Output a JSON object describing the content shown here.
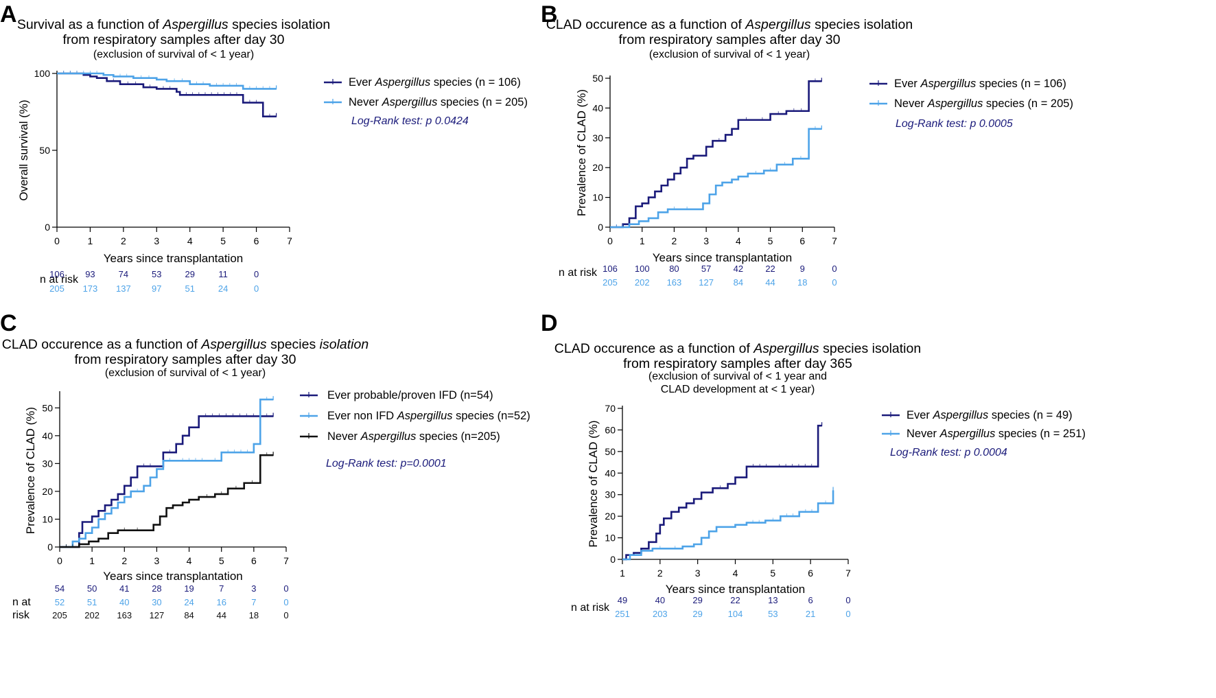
{
  "colors": {
    "dark_blue": "#1a1a7a",
    "light_blue": "#4da3e8",
    "black": "#111111"
  },
  "chart_data": [
    {
      "panel": "A",
      "type": "line",
      "step": true,
      "title_runs": [
        [
          {
            "text": "Survival as a function of "
          },
          {
            "text": "Aspergillus",
            "italic": true
          },
          {
            "text": " species isolation"
          }
        ],
        [
          {
            "text": "from respiratory samples after day 30"
          }
        ]
      ],
      "subtitle_lines": [
        "(exclusion of survival of < 1 year)"
      ],
      "xlabel": "Years since transplantation",
      "ylabel": "Overall survival (%)",
      "xlim": [
        0,
        7
      ],
      "ylim": [
        0,
        100
      ],
      "xticks": [
        0,
        1,
        2,
        3,
        4,
        5,
        6,
        7
      ],
      "yticks": [
        0,
        50,
        100
      ],
      "series": [
        {
          "label_runs": [
            {
              "text": "Ever "
            },
            {
              "text": "Aspergillus",
              "italic": true
            },
            {
              "text": " species  (n = 106)"
            }
          ],
          "color": "#1a1a7a",
          "x": [
            0,
            0.8,
            1.0,
            1.2,
            1.5,
            1.9,
            2.6,
            3.0,
            3.6,
            3.7,
            5.6,
            6.2,
            6.6
          ],
          "y": [
            100,
            99,
            98,
            97,
            95,
            93,
            91,
            90,
            88,
            86,
            81,
            72,
            72
          ]
        },
        {
          "label_runs": [
            {
              "text": "Never "
            },
            {
              "text": "Aspergillus",
              "italic": true
            },
            {
              "text": " species (n = 205)"
            }
          ],
          "color": "#4da3e8",
          "x": [
            0,
            1.4,
            1.7,
            2.3,
            3.0,
            3.3,
            4.0,
            4.6,
            5.6,
            6.6
          ],
          "y": [
            100,
            99,
            98,
            97,
            96,
            95,
            93,
            92,
            90,
            90
          ]
        }
      ],
      "annotation": "Log-Rank test: p 0.0424",
      "risk_table": {
        "label_lines": [
          "n at risk"
        ],
        "rows": [
          {
            "color": "#1a1a7a",
            "values": [
              "106",
              "93",
              "74",
              "53",
              "29",
              "11",
              "0"
            ]
          },
          {
            "color": "#4da3e8",
            "values": [
              "205",
              "173",
              "137",
              "97",
              "51",
              "24",
              "0"
            ]
          }
        ]
      }
    },
    {
      "panel": "B",
      "type": "line",
      "step": true,
      "title_runs": [
        [
          {
            "text": "CLAD occurence as a function of "
          },
          {
            "text": "Aspergillus",
            "italic": true
          },
          {
            "text": " species isolation"
          }
        ],
        [
          {
            "text": "from respiratory samples after day 30"
          }
        ]
      ],
      "subtitle_lines": [
        "(exclusion of survival of < 1 year)"
      ],
      "xlabel": "Years since transplantation",
      "ylabel": "Prevalence of CLAD (%)",
      "xlim": [
        0,
        7
      ],
      "ylim": [
        0,
        50
      ],
      "xticks": [
        0,
        1,
        2,
        3,
        4,
        5,
        6,
        7
      ],
      "yticks": [
        0,
        10,
        20,
        30,
        40,
        50
      ],
      "series": [
        {
          "label_runs": [
            {
              "text": "Ever "
            },
            {
              "text": "Aspergillus",
              "italic": true
            },
            {
              "text": " species  (n = 106)"
            }
          ],
          "color": "#1a1a7a",
          "x": [
            0,
            0.4,
            0.6,
            0.8,
            1.0,
            1.2,
            1.4,
            1.6,
            1.8,
            2.0,
            2.2,
            2.4,
            2.6,
            2.8,
            3.0,
            3.2,
            3.6,
            3.8,
            4.0,
            4.5,
            5.0,
            5.5,
            6.2,
            6.6
          ],
          "y": [
            0,
            1,
            3,
            7,
            8,
            10,
            12,
            14,
            16,
            18,
            20,
            23,
            24,
            24,
            27,
            29,
            31,
            33,
            36,
            36,
            38,
            39,
            49,
            49
          ]
        },
        {
          "label_runs": [
            {
              "text": "Never "
            },
            {
              "text": "Aspergillus",
              "italic": true
            },
            {
              "text": " species (n = 205)"
            }
          ],
          "color": "#4da3e8",
          "x": [
            0,
            0.6,
            0.9,
            1.2,
            1.5,
            1.8,
            2.2,
            2.6,
            2.9,
            3.1,
            3.3,
            3.5,
            3.8,
            4.0,
            4.3,
            4.8,
            5.2,
            5.7,
            6.2,
            6.6
          ],
          "y": [
            0,
            1,
            2,
            3,
            5,
            6,
            6,
            6,
            8,
            11,
            14,
            15,
            16,
            17,
            18,
            19,
            21,
            23,
            33,
            33
          ]
        }
      ],
      "annotation": "Log-Rank test: p 0.0005",
      "risk_table": {
        "label_lines": [
          "n at risk"
        ],
        "rows": [
          {
            "color": "#1a1a7a",
            "values": [
              "106",
              "100",
              "80",
              "57",
              "42",
              "22",
              "9",
              "0"
            ]
          },
          {
            "color": "#4da3e8",
            "values": [
              "205",
              "202",
              "163",
              "127",
              "84",
              "44",
              "18",
              "0"
            ]
          }
        ]
      }
    },
    {
      "panel": "C",
      "type": "line",
      "step": true,
      "title_runs": [
        [
          {
            "text": "CLAD occurence as a function of "
          },
          {
            "text": "Aspergillus",
            "italic": true
          },
          {
            "text": " species "
          },
          {
            "text": "isolation",
            "italic": true
          }
        ],
        [
          {
            "text": "from respiratory samples after day 30"
          }
        ]
      ],
      "subtitle_lines": [
        "(exclusion of survival of < 1 year)"
      ],
      "xlabel": "Years since transplantation",
      "ylabel": "Prevalence of CLAD (%)",
      "xlim": [
        0,
        7
      ],
      "ylim": [
        0,
        55
      ],
      "xticks": [
        0,
        1,
        2,
        3,
        4,
        5,
        6,
        7
      ],
      "yticks": [
        0,
        10,
        20,
        30,
        40,
        50
      ],
      "series": [
        {
          "label_runs": [
            {
              "text": "Ever probable/proven IFD (n=54)"
            }
          ],
          "color": "#1a1a7a",
          "x": [
            0,
            0.6,
            0.7,
            1.0,
            1.2,
            1.4,
            1.6,
            1.8,
            2.0,
            2.2,
            2.4,
            3.0,
            3.2,
            3.6,
            3.8,
            4.0,
            4.3,
            6.2,
            6.6
          ],
          "y": [
            0,
            5,
            9,
            11,
            13,
            15,
            17,
            19,
            22,
            25,
            29,
            29,
            34,
            37,
            40,
            43,
            47,
            47,
            47
          ],
          "connect_to_end": false
        },
        {
          "label_runs": [
            {
              "text": "Ever non IFD "
            },
            {
              "text": "Aspergillus",
              "italic": true
            },
            {
              "text": " species (n=52)"
            }
          ],
          "color": "#4da3e8",
          "x": [
            0,
            0.4,
            0.6,
            0.8,
            1.0,
            1.2,
            1.4,
            1.6,
            1.8,
            2.0,
            2.2,
            2.6,
            2.8,
            3.0,
            3.2,
            3.6,
            4.6,
            5.0,
            6.0,
            6.2,
            6.6
          ],
          "y": [
            0,
            2,
            3,
            5,
            7,
            10,
            12,
            14,
            16,
            18,
            20,
            22,
            25,
            28,
            31,
            31,
            31,
            34,
            37,
            53,
            53
          ]
        },
        {
          "label_runs": [
            {
              "text": "Never "
            },
            {
              "text": "Aspergillus",
              "italic": true
            },
            {
              "text": " species (n=205)"
            }
          ],
          "color": "#111111",
          "x": [
            0,
            0.6,
            0.9,
            1.2,
            1.5,
            1.8,
            2.2,
            2.6,
            2.9,
            3.1,
            3.3,
            3.5,
            3.8,
            4.0,
            4.3,
            4.8,
            5.2,
            5.7,
            6.2,
            6.6
          ],
          "y": [
            0,
            1,
            2,
            3,
            5,
            6,
            6,
            6,
            8,
            11,
            14,
            15,
            16,
            17,
            18,
            19,
            21,
            23,
            33,
            33
          ]
        }
      ],
      "annotation": "Log-Rank test: p=0.0001",
      "risk_table": {
        "label_lines": [
          "n at",
          "risk"
        ],
        "rows": [
          {
            "color": "#1a1a7a",
            "values": [
              "54",
              "50",
              "41",
              "28",
              "19",
              "7",
              "3",
              "0"
            ]
          },
          {
            "color": "#4da3e8",
            "values": [
              "52",
              "51",
              "40",
              "30",
              "24",
              "16",
              "7",
              "0"
            ]
          },
          {
            "color": "#111111",
            "values": [
              "205",
              "202",
              "163",
              "127",
              "84",
              "44",
              "18",
              "0"
            ]
          }
        ]
      }
    },
    {
      "panel": "D",
      "type": "line",
      "step": true,
      "title_runs": [
        [
          {
            "text": "CLAD occurence as a function of "
          },
          {
            "text": "Aspergillus",
            "italic": true
          },
          {
            "text": " species isolation"
          }
        ],
        [
          {
            "text": "from respiratory samples after day 365"
          }
        ]
      ],
      "subtitle_lines": [
        "(exclusion of survival of < 1 year and",
        "CLAD development at < 1 year)"
      ],
      "xlabel": "Years since transplantation",
      "ylabel": "Prevalence of CLAD (%)",
      "xlim": [
        1,
        7
      ],
      "ylim": [
        0,
        70
      ],
      "xticks": [
        1,
        2,
        3,
        4,
        5,
        6,
        7
      ],
      "yticks": [
        0,
        10,
        20,
        30,
        40,
        50,
        60,
        70
      ],
      "series": [
        {
          "label_runs": [
            {
              "text": "Ever "
            },
            {
              "text": "Aspergillus",
              "italic": true
            },
            {
              "text": " species (n = 49)"
            }
          ],
          "color": "#1a1a7a",
          "x": [
            1,
            1.1,
            1.3,
            1.5,
            1.7,
            1.9,
            2.0,
            2.1,
            2.3,
            2.5,
            2.7,
            2.9,
            3.1,
            3.4,
            3.8,
            4.0,
            4.3,
            5.0,
            6.2,
            6.3
          ],
          "y": [
            0,
            2,
            3,
            5,
            8,
            12,
            16,
            19,
            22,
            24,
            26,
            28,
            31,
            33,
            35,
            38,
            43,
            43,
            62,
            62
          ]
        },
        {
          "label_runs": [
            {
              "text": "Never "
            },
            {
              "text": "Aspergillus",
              "italic": true
            },
            {
              "text": " species (n = 251)"
            }
          ],
          "color": "#4da3e8",
          "x": [
            1,
            1.2,
            1.5,
            1.8,
            2.2,
            2.6,
            2.9,
            3.1,
            3.3,
            3.5,
            3.8,
            4.0,
            4.3,
            4.8,
            5.2,
            5.7,
            6.2,
            6.6
          ],
          "y": [
            0,
            2,
            4,
            5,
            5,
            6,
            7,
            10,
            13,
            15,
            15,
            16,
            17,
            18,
            20,
            22,
            26,
            32
          ]
        }
      ],
      "annotation": "Log-Rank test: p 0.0004",
      "risk_table": {
        "label_lines": [
          "n at risk"
        ],
        "rows": [
          {
            "color": "#1a1a7a",
            "values": [
              "49",
              "40",
              "29",
              "22",
              "13",
              "6",
              "0"
            ]
          },
          {
            "color": "#4da3e8",
            "values": [
              "251",
              "203",
              "29",
              "104",
              "53",
              "21",
              "0"
            ]
          }
        ]
      }
    }
  ]
}
